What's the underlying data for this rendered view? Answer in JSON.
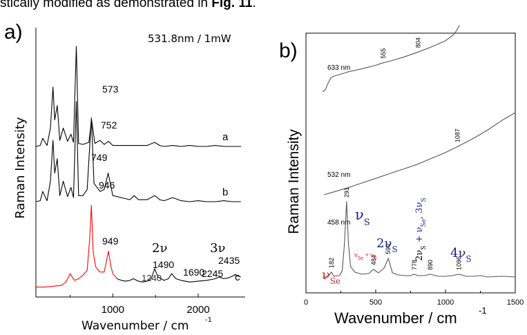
{
  "caption": {
    "text": "stically modified as demonstrated in ",
    "figref": "Fig. 11",
    "end": "."
  },
  "chart_data": [
    {
      "type": "line",
      "panel_label": "a)",
      "annotation": "531.8nm / 1mW",
      "xlabel": "Wavenumber / cm",
      "xlabel_sup": "-1",
      "ylabel": "Raman Intensity",
      "xlim": [
        100,
        2550
      ],
      "xticks": [
        1000,
        2000
      ],
      "xtick_labels": [
        "1000",
        "2000"
      ],
      "series": [
        {
          "name": "a",
          "color": "#000000",
          "x": [
            100,
            150,
            180,
            230,
            270,
            300,
            320,
            350,
            380,
            420,
            470,
            510,
            540,
            573,
            600,
            650,
            720,
            752,
            790,
            850,
            900,
            950,
            1000,
            1100,
            1200,
            1300,
            1400,
            1490,
            1550,
            1600,
            1700,
            1800,
            1900,
            2000,
            2100,
            2200,
            2300,
            2400,
            2500
          ],
          "y": [
            2,
            3,
            10,
            3,
            20,
            60,
            28,
            42,
            8,
            20,
            7,
            14,
            6,
            100,
            5,
            4,
            6,
            28,
            5,
            8,
            4,
            7,
            3,
            3,
            3,
            3,
            3,
            6,
            3,
            2,
            3,
            2,
            3,
            2,
            2,
            3,
            2,
            2,
            2
          ],
          "peak_labels": [
            {
              "x": 573,
              "label": "573"
            },
            {
              "x": 752,
              "label": "752"
            }
          ]
        },
        {
          "name": "b",
          "color": "#000000",
          "x": [
            100,
            150,
            180,
            230,
            270,
            300,
            320,
            350,
            380,
            420,
            470,
            510,
            540,
            573,
            600,
            650,
            700,
            749,
            780,
            850,
            900,
            946,
            1000,
            1100,
            1200,
            1250,
            1300,
            1400,
            1490,
            1550,
            1600,
            1700,
            1800,
            1900,
            2000,
            2100,
            2200,
            2300,
            2400,
            2500
          ],
          "y": [
            2,
            3,
            12,
            3,
            22,
            62,
            30,
            44,
            8,
            22,
            7,
            16,
            6,
            100,
            8,
            8,
            14,
            84,
            20,
            12,
            14,
            30,
            8,
            6,
            4,
            8,
            4,
            4,
            8,
            4,
            3,
            6,
            3,
            2,
            3,
            2,
            2,
            3,
            2,
            2
          ],
          "peak_labels": [
            {
              "x": 749,
              "label": "749"
            },
            {
              "x": 946,
              "label": "946"
            }
          ]
        },
        {
          "name": "c",
          "color": "#ff0000",
          "x": [
            100,
            200,
            300,
            400,
            450,
            500,
            550,
            600,
            650,
            700,
            730,
            749,
            770,
            800,
            850,
            900,
            949,
            980,
            1000,
            1050
          ],
          "y": [
            2,
            2,
            3,
            4,
            8,
            18,
            10,
            12,
            16,
            22,
            60,
            100,
            44,
            26,
            20,
            20,
            45,
            26,
            18,
            12
          ]
        },
        {
          "name": "c",
          "color": "#000000",
          "x": [
            1050,
            1100,
            1150,
            1200,
            1240,
            1300,
            1350,
            1400,
            1450,
            1490,
            1530,
            1600,
            1650,
            1690,
            1740,
            1800,
            1900,
            2000,
            2100,
            2200,
            2245,
            2300,
            2350,
            2400,
            2435,
            2470,
            2500
          ],
          "y": [
            12,
            10,
            9,
            10,
            12,
            9,
            8,
            9,
            12,
            24,
            14,
            10,
            12,
            18,
            12,
            10,
            8,
            9,
            10,
            12,
            14,
            12,
            13,
            15,
            17,
            15,
            14
          ],
          "peak_labels": [
            {
              "x": 949,
              "label": "949"
            },
            {
              "x": 1240,
              "label": "1240"
            },
            {
              "x": 1490,
              "label": "1490"
            },
            {
              "x": 1690,
              "label": "1690"
            },
            {
              "x": 2245,
              "label": "2245"
            },
            {
              "x": 2435,
              "label": "2435"
            }
          ]
        }
      ],
      "overtone_labels": [
        "2ν",
        "3ν"
      ]
    },
    {
      "type": "line",
      "panel_label": "b)",
      "xlabel": "Wavenumber / cm",
      "xlabel_sup": "-1",
      "ylabel": "Raman Intensity",
      "xlim": [
        0,
        1500
      ],
      "xticks": [
        0,
        500,
        1000,
        1500
      ],
      "xtick_labels": [
        "0",
        "500",
        "1000",
        "1500"
      ],
      "series": [
        {
          "name": "633 nm",
          "color": "#555555",
          "x": [
            120,
            140,
            160,
            180,
            200,
            230,
            300,
            400,
            500,
            555,
            600,
            700,
            804,
            900,
            1000,
            1050,
            1080,
            1100
          ],
          "y": [
            0,
            5,
            18,
            28,
            31,
            33,
            39,
            45,
            52,
            57,
            60,
            68,
            78,
            88,
            100,
            110,
            120,
            130
          ]
        },
        {
          "name": "532 nm",
          "color": "#555555",
          "x": [
            130,
            200,
            300,
            400,
            500,
            600,
            700,
            800,
            900,
            1000,
            1087,
            1200,
            1300,
            1400,
            1500
          ],
          "y": [
            0,
            5,
            12,
            20,
            28,
            36,
            44,
            52,
            62,
            72,
            82,
            96,
            110,
            126,
            140
          ]
        },
        {
          "name": "458 nm",
          "color": "#555555",
          "x": [
            120,
            160,
            182,
            200,
            240,
            260,
            275,
            291,
            305,
            320,
            350,
            400,
            450,
            484,
            520,
            560,
            590,
            620,
            660,
            700,
            750,
            778,
            800,
            850,
            890,
            950,
            1000,
            1050,
            1096,
            1150,
            1200,
            1250,
            1300,
            1400,
            1500
          ],
          "y": [
            2,
            4,
            10,
            4,
            5,
            12,
            50,
            112,
            50,
            18,
            10,
            7,
            8,
            14,
            9,
            16,
            30,
            9,
            6,
            5,
            5,
            7,
            5,
            5,
            7,
            4,
            4,
            5,
            7,
            4,
            4,
            5,
            3,
            4,
            3
          ]
        }
      ],
      "peak_labels": [
        {
          "series": "633 nm",
          "x": 555,
          "label": "555"
        },
        {
          "series": "633 nm",
          "x": 804,
          "label": "804"
        },
        {
          "series": "532 nm",
          "x": 1087,
          "label": "1087"
        },
        {
          "series": "458 nm",
          "x": 182,
          "label": "182"
        },
        {
          "series": "458 nm",
          "x": 291,
          "label": "291"
        },
        {
          "series": "458 nm",
          "x": 484,
          "label": "484"
        },
        {
          "series": "458 nm",
          "x": 590,
          "label": "590"
        },
        {
          "series": "458 nm",
          "x": 778,
          "label": "778"
        },
        {
          "series": "458 nm",
          "x": 890,
          "label": "890"
        },
        {
          "series": "458 nm",
          "x": 1096,
          "label": "1096"
        }
      ],
      "mode_labels": {
        "nu_se": {
          "text": "ν",
          "sub": "Se",
          "color": "#e0202b"
        },
        "nu_s": {
          "text": "ν",
          "sub": "S",
          "color": "#1d1d8c"
        },
        "two_nu_s": {
          "text": "2ν",
          "sub": "S",
          "color": "#1d1d8c"
        },
        "combo1": {
          "parts": [
            "ν",
            "Se",
            " + ν",
            "S"
          ],
          "color": "#e0202b"
        },
        "combo2": {
          "parts": [
            "2ν",
            "S",
            " + ν",
            "Se",
            ", 3ν",
            "S"
          ],
          "color_main": "#000000",
          "color_accent": "#1d1d8c"
        },
        "four_nu_s": {
          "text": "4ν",
          "sub": "S",
          "color": "#1d1d8c"
        }
      }
    }
  ]
}
